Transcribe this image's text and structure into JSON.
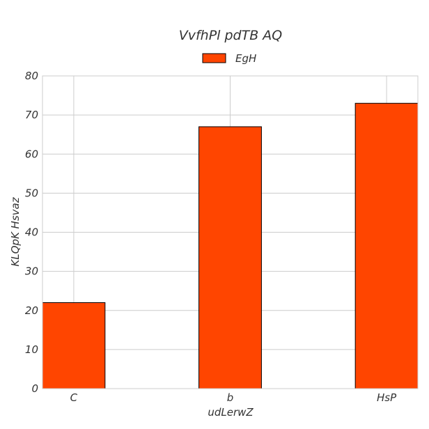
{
  "chart_data": {
    "type": "bar",
    "title": "VvfhPl pdTB AQ",
    "xlabel": "udLerwZ",
    "ylabel": "KLQpK Hsvaz",
    "categories": [
      "C",
      "b",
      "HsP"
    ],
    "series": [
      {
        "name": "EgH",
        "values": [
          22,
          67,
          73
        ],
        "color": "#ff4500"
      }
    ],
    "ylim": [
      0,
      80
    ],
    "yticks": [
      0,
      10,
      20,
      30,
      40,
      50,
      60,
      70,
      80
    ],
    "grid": true,
    "legend": "top-center"
  }
}
